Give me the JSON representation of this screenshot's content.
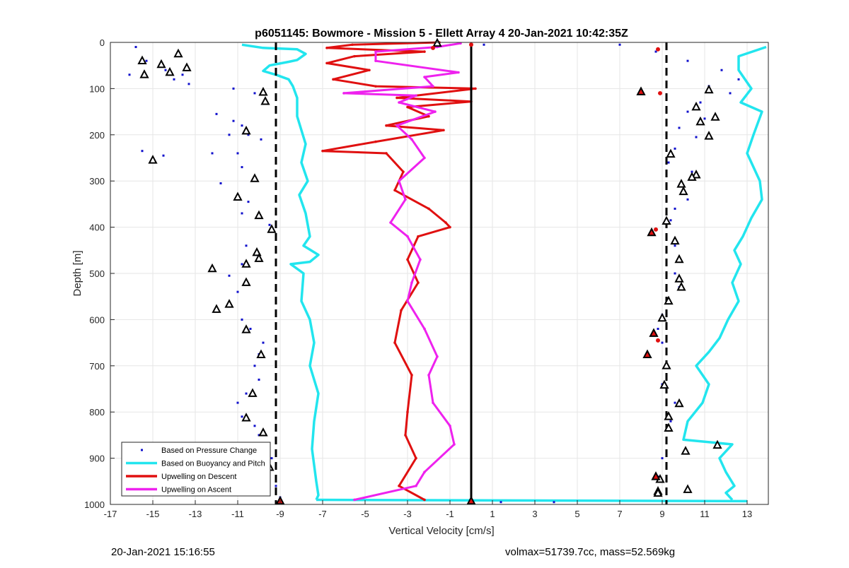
{
  "chart_data": {
    "type": "scatter",
    "title": "p6051145: Bowmore - Mission 5 - Ellett Array 4 20-Jan-2021 10:42:35Z",
    "xlabel": "Vertical Velocity [cm/s]",
    "ylabel": "Depth [m]",
    "xlim": [
      -17,
      14
    ],
    "ylim": [
      0,
      1000
    ],
    "y_reversed": true,
    "grid": true,
    "xticks": [
      -17,
      -15,
      -13,
      -11,
      -9,
      -7,
      -5,
      -3,
      -1,
      1,
      3,
      5,
      7,
      9,
      11,
      13
    ],
    "yticks": [
      0,
      100,
      200,
      300,
      400,
      500,
      600,
      700,
      800,
      900,
      1000
    ],
    "legend_position": "bottom-left",
    "legend": [
      {
        "name": "Based on Pressure Change",
        "style": "dots",
        "color": "#1010cc"
      },
      {
        "name": "Based on Buoyancy and Pitch",
        "style": "line",
        "color": "#22e5ee"
      },
      {
        "name": "Upwelling on Descent",
        "style": "line",
        "color": "#e01010"
      },
      {
        "name": "Upwelling on Ascent",
        "style": "line",
        "color": "#ee22ee"
      }
    ],
    "reference_lines": [
      {
        "x": -9.2,
        "style": "dashed",
        "color": "#000000"
      },
      {
        "x": 9.2,
        "style": "dashed",
        "color": "#000000"
      },
      {
        "x": 0,
        "style": "solid",
        "color": "#000000"
      }
    ],
    "series": [
      {
        "name": "Based on Buoyancy and Pitch",
        "segments": [
          {
            "points": [
              [
                -10.8,
                5
              ],
              [
                -9.8,
                12
              ],
              [
                -8.2,
                15
              ],
              [
                -7.8,
                25
              ],
              [
                -8.2,
                38
              ],
              [
                -8.6,
                42
              ],
              [
                -9.5,
                50
              ],
              [
                -9.8,
                62
              ],
              [
                -9.2,
                70
              ],
              [
                -8.6,
                80
              ],
              [
                -8.4,
                95
              ],
              [
                -8.2,
                120
              ],
              [
                -8.2,
                160
              ],
              [
                -7.8,
                220
              ],
              [
                -8.0,
                260
              ],
              [
                -7.7,
                300
              ],
              [
                -8.1,
                330
              ],
              [
                -7.8,
                370
              ],
              [
                -7.6,
                420
              ],
              [
                -7.9,
                440
              ],
              [
                -7.2,
                460
              ],
              [
                -7.6,
                475
              ],
              [
                -8.5,
                480
              ],
              [
                -7.9,
                500
              ],
              [
                -8.0,
                560
              ],
              [
                -7.6,
                600
              ],
              [
                -7.4,
                650
              ],
              [
                -7.6,
                700
              ],
              [
                -7.2,
                760
              ],
              [
                -7.4,
                820
              ],
              [
                -7.5,
                880
              ],
              [
                -7.3,
                950
              ],
              [
                -7.2,
                980
              ],
              [
                -7.3,
                990
              ]
            ]
          },
          {
            "points": [
              [
                -7.3,
                990
              ],
              [
                13.0,
                993
              ]
            ]
          },
          {
            "points": [
              [
                13.9,
                10
              ],
              [
                12.6,
                30
              ],
              [
                12.6,
                60
              ],
              [
                13.2,
                100
              ],
              [
                12.7,
                130
              ],
              [
                13.7,
                150
              ],
              [
                13.3,
                200
              ],
              [
                13.0,
                240
              ],
              [
                13.6,
                300
              ],
              [
                13.7,
                340
              ],
              [
                13.2,
                380
              ],
              [
                12.8,
                420
              ],
              [
                12.4,
                450
              ],
              [
                12.7,
                480
              ],
              [
                12.3,
                520
              ],
              [
                12.6,
                560
              ],
              [
                12.1,
                600
              ],
              [
                11.7,
                640
              ],
              [
                11.2,
                670
              ],
              [
                10.6,
                700
              ],
              [
                11.2,
                740
              ],
              [
                10.9,
                780
              ],
              [
                10.2,
                820
              ],
              [
                10.0,
                860
              ],
              [
                12.3,
                870
              ],
              [
                11.7,
                900
              ],
              [
                12.0,
                930
              ],
              [
                12.4,
                960
              ],
              [
                12.0,
                975
              ],
              [
                12.3,
                990
              ]
            ]
          }
        ]
      },
      {
        "name": "Upwelling on Descent",
        "points": [
          [
            -1.5,
            0
          ],
          [
            -5.6,
            5
          ],
          [
            -6.8,
            12
          ],
          [
            -2.2,
            20
          ],
          [
            -5.5,
            30
          ],
          [
            -6.8,
            45
          ],
          [
            -4.8,
            60
          ],
          [
            -6.5,
            80
          ],
          [
            -4.5,
            95
          ],
          [
            0.2,
            100
          ],
          [
            -3.5,
            120
          ],
          [
            0.0,
            128
          ],
          [
            -3.0,
            140
          ],
          [
            -2.0,
            160
          ],
          [
            -4.0,
            180
          ],
          [
            -1.3,
            190
          ],
          [
            -4.5,
            215
          ],
          [
            -7.0,
            235
          ],
          [
            -4.0,
            240
          ],
          [
            -3.2,
            280
          ],
          [
            -3.6,
            320
          ],
          [
            -2.0,
            360
          ],
          [
            -1.2,
            390
          ],
          [
            -1.0,
            400
          ],
          [
            -2.5,
            420
          ],
          [
            -3.0,
            470
          ],
          [
            -2.5,
            520
          ],
          [
            -3.3,
            580
          ],
          [
            -3.6,
            650
          ],
          [
            -2.8,
            720
          ],
          [
            -3.0,
            800
          ],
          [
            -3.1,
            850
          ],
          [
            -2.6,
            900
          ],
          [
            -3.4,
            960
          ],
          [
            -2.2,
            990
          ]
        ]
      },
      {
        "name": "Upwelling on Ascent",
        "points": [
          [
            -5.5,
            990
          ],
          [
            -2.6,
            960
          ],
          [
            -2.2,
            930
          ],
          [
            -0.8,
            870
          ],
          [
            -1.0,
            830
          ],
          [
            -1.8,
            780
          ],
          [
            -2.0,
            720
          ],
          [
            -1.6,
            680
          ],
          [
            -2.2,
            620
          ],
          [
            -3.0,
            560
          ],
          [
            -2.8,
            520
          ],
          [
            -2.4,
            470
          ],
          [
            -3.0,
            420
          ],
          [
            -3.8,
            390
          ],
          [
            -3.1,
            340
          ],
          [
            -3.4,
            300
          ],
          [
            -2.2,
            250
          ],
          [
            -2.8,
            210
          ],
          [
            -3.5,
            180
          ],
          [
            -1.7,
            150
          ],
          [
            -3.4,
            130
          ],
          [
            -2.6,
            115
          ],
          [
            -6.0,
            110
          ],
          [
            -1.8,
            95
          ],
          [
            -2.2,
            75
          ],
          [
            -0.6,
            65
          ],
          [
            -4.5,
            40
          ],
          [
            -4.5,
            20
          ],
          [
            -1.6,
            10
          ],
          [
            -0.5,
            2
          ]
        ]
      },
      {
        "name": "Based on Pressure Change",
        "note": "sampled",
        "points": [
          [
            -15.8,
            10
          ],
          [
            -15.3,
            40
          ],
          [
            -16.1,
            70
          ],
          [
            -14.4,
            60
          ],
          [
            -13.6,
            70
          ],
          [
            -14.0,
            80
          ],
          [
            -13.3,
            90
          ],
          [
            -11.2,
            100
          ],
          [
            -10.2,
            110
          ],
          [
            -12.0,
            155
          ],
          [
            -11.2,
            170
          ],
          [
            -10.8,
            180
          ],
          [
            -11.4,
            200
          ],
          [
            -10.5,
            200
          ],
          [
            -9.9,
            210
          ],
          [
            -12.2,
            240
          ],
          [
            -11.0,
            240
          ],
          [
            -15.5,
            235
          ],
          [
            -14.5,
            245
          ],
          [
            -10.8,
            270
          ],
          [
            -11.8,
            305
          ],
          [
            -11.0,
            330
          ],
          [
            -10.5,
            345
          ],
          [
            -10.8,
            370
          ],
          [
            -10.0,
            380
          ],
          [
            -9.5,
            395
          ],
          [
            -10.6,
            440
          ],
          [
            -10.1,
            460
          ],
          [
            -10.8,
            480
          ],
          [
            -12.2,
            490
          ],
          [
            -11.4,
            505
          ],
          [
            -10.6,
            520
          ],
          [
            -11.0,
            540
          ],
          [
            -11.4,
            565
          ],
          [
            -12.0,
            575
          ],
          [
            -10.8,
            600
          ],
          [
            -10.4,
            620
          ],
          [
            -9.8,
            650
          ],
          [
            -10.0,
            675
          ],
          [
            -10.2,
            700
          ],
          [
            -10.0,
            730
          ],
          [
            -10.6,
            760
          ],
          [
            -11.0,
            780
          ],
          [
            -10.8,
            810
          ],
          [
            -10.2,
            830
          ],
          [
            -10.0,
            850
          ],
          [
            -9.6,
            870
          ],
          [
            -9.4,
            900
          ],
          [
            -9.6,
            930
          ],
          [
            -9.2,
            960
          ],
          [
            -9.0,
            985
          ],
          [
            0.6,
            5
          ],
          [
            7.0,
            5
          ],
          [
            1.4,
            995
          ],
          [
            3.9,
            995
          ],
          [
            8.7,
            20
          ],
          [
            10.2,
            40
          ],
          [
            11.8,
            60
          ],
          [
            12.6,
            80
          ],
          [
            11.2,
            95
          ],
          [
            12.2,
            110
          ],
          [
            10.8,
            130
          ],
          [
            10.2,
            150
          ],
          [
            11.0,
            165
          ],
          [
            9.8,
            185
          ],
          [
            10.6,
            205
          ],
          [
            9.6,
            230
          ],
          [
            9.3,
            260
          ],
          [
            10.4,
            280
          ],
          [
            9.8,
            310
          ],
          [
            10.2,
            340
          ],
          [
            9.6,
            360
          ],
          [
            9.4,
            385
          ],
          [
            9.2,
            420
          ],
          [
            9.6,
            440
          ],
          [
            9.8,
            470
          ],
          [
            9.6,
            500
          ],
          [
            9.8,
            530
          ],
          [
            9.2,
            560
          ],
          [
            9.0,
            590
          ],
          [
            8.8,
            620
          ],
          [
            9.0,
            650
          ],
          [
            9.2,
            700
          ],
          [
            9.0,
            740
          ],
          [
            9.6,
            780
          ],
          [
            9.4,
            820
          ],
          [
            9.2,
            860
          ],
          [
            9.0,
            900
          ],
          [
            8.8,
            940
          ],
          [
            8.9,
            975
          ]
        ]
      }
    ],
    "markers": {
      "triangle_open": [
        [
          -15.5,
          40
        ],
        [
          -13.8,
          25
        ],
        [
          -14.6,
          48
        ],
        [
          -13.4,
          55
        ],
        [
          -15.4,
          70
        ],
        [
          -14.2,
          65
        ],
        [
          -9.8,
          108
        ],
        [
          -9.7,
          128
        ],
        [
          -10.6,
          192
        ],
        [
          -15.0,
          255
        ],
        [
          -10.2,
          295
        ],
        [
          -11.0,
          335
        ],
        [
          -10.0,
          375
        ],
        [
          -9.4,
          405
        ],
        [
          -10.1,
          455
        ],
        [
          -10.0,
          468
        ],
        [
          -10.6,
          480
        ],
        [
          -12.2,
          490
        ],
        [
          -10.6,
          520
        ],
        [
          -12.0,
          578
        ],
        [
          -11.4,
          567
        ],
        [
          -10.6,
          622
        ],
        [
          -9.9,
          676
        ],
        [
          -10.3,
          760
        ],
        [
          -10.6,
          813
        ],
        [
          -9.8,
          845
        ],
        [
          -9.5,
          920
        ],
        [
          11.2,
          103
        ],
        [
          11.5,
          162
        ],
        [
          10.6,
          140
        ],
        [
          11.2,
          203
        ],
        [
          10.8,
          172
        ],
        [
          9.4,
          242
        ],
        [
          10.6,
          287
        ],
        [
          9.9,
          307
        ],
        [
          10.4,
          292
        ],
        [
          10.0,
          323
        ],
        [
          9.2,
          387
        ],
        [
          9.6,
          430
        ],
        [
          9.8,
          470
        ],
        [
          9.8,
          512
        ],
        [
          9.9,
          530
        ],
        [
          9.3,
          560
        ],
        [
          9.0,
          597
        ],
        [
          9.2,
          700
        ],
        [
          9.1,
          742
        ],
        [
          9.8,
          782
        ],
        [
          9.3,
          810
        ],
        [
          9.3,
          835
        ],
        [
          10.1,
          885
        ],
        [
          10.2,
          968
        ],
        [
          8.8,
          972
        ],
        [
          8.8,
          976
        ],
        [
          8.9,
          946
        ],
        [
          11.6,
          872
        ],
        [
          -1.6,
          2
        ]
      ],
      "triangle_red": [
        [
          -9.0,
          993
        ],
        [
          0,
          993
        ],
        [
          8.0,
          107
        ],
        [
          8.5,
          412
        ],
        [
          8.6,
          630
        ],
        [
          8.3,
          676
        ],
        [
          8.7,
          940
        ]
      ],
      "dots_red": [
        [
          8.8,
          15
        ],
        [
          8.9,
          110
        ],
        [
          8.7,
          405
        ],
        [
          8.8,
          645
        ],
        [
          -1.8,
          12
        ],
        [
          0,
          5
        ]
      ]
    }
  },
  "footer": {
    "left": "20-Jan-2021 15:16:55",
    "right": "volmax=51739.7cc, mass=52.569kg"
  }
}
